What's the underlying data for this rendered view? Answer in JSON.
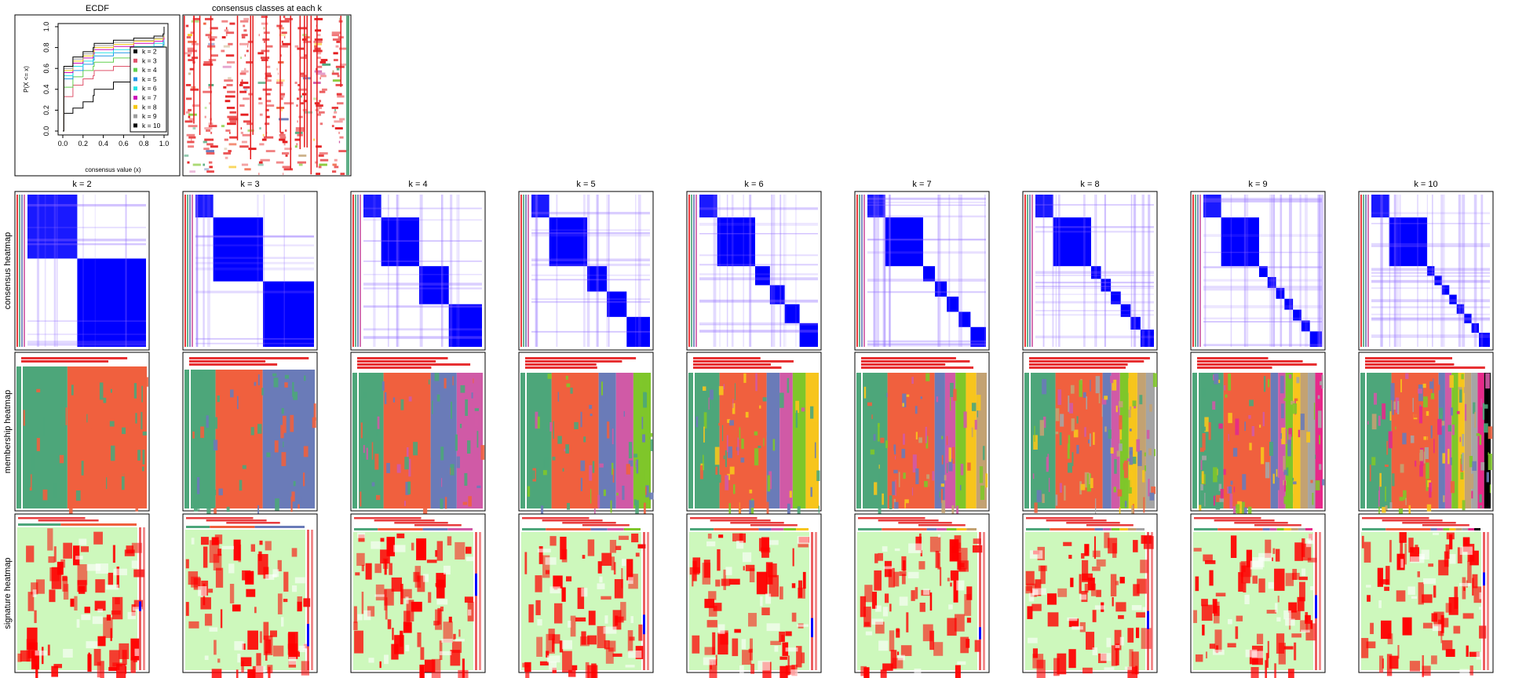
{
  "ecdf": {
    "title": "ECDF",
    "xlabel": "consensus value (x)",
    "ylabel": "P(X <= x)",
    "xlim": [
      0,
      1
    ],
    "ylim": [
      0,
      1
    ],
    "xticks": [
      "0.0",
      "0.2",
      "0.4",
      "0.6",
      "0.8",
      "1.0"
    ],
    "yticks": [
      "0.0",
      "0.2",
      "0.4",
      "0.6",
      "0.8",
      "1.0"
    ],
    "legend_placement": "bottom-right"
  },
  "classes_panel": {
    "title": "consensus classes at each k"
  },
  "row_labels": {
    "consensus": "consensus heatmap",
    "membership": "membership heatmap",
    "signature": "signature heatmap"
  },
  "colors": {
    "k_palette": [
      "#000000",
      "#DF536B",
      "#61D04F",
      "#2297E6",
      "#28E2E5",
      "#CD0BBC",
      "#F5C710",
      "#9E9E9E",
      "#000000"
    ],
    "class_palette": [
      "#E41A1C",
      "#F0603E",
      "#4DA67A",
      "#6A7BB8",
      "#D05AA6",
      "#7FC62A",
      "#F7C51C",
      "#C3A272",
      "#A5A5A5",
      "#E7298A"
    ],
    "consensus_blue": "#0000FF",
    "signature_red": "#FF0000",
    "signature_green": "#B8F5A0",
    "signature_blue": "#0000FF"
  },
  "chart_data": {
    "type": "line",
    "series": [
      {
        "name": "k = 2",
        "color": "#000000",
        "x": [
          0,
          0.01,
          0.1,
          0.2,
          0.3,
          0.31,
          0.5,
          0.7,
          0.9,
          0.99,
          1.0
        ],
        "y": [
          0,
          0.17,
          0.22,
          0.28,
          0.34,
          0.4,
          0.47,
          0.53,
          0.57,
          0.6,
          1.0
        ]
      },
      {
        "name": "k = 3",
        "color": "#DF536B",
        "x": [
          0,
          0.01,
          0.1,
          0.2,
          0.3,
          0.31,
          0.5,
          0.7,
          0.9,
          0.99,
          1.0
        ],
        "y": [
          0,
          0.33,
          0.44,
          0.5,
          0.53,
          0.58,
          0.62,
          0.66,
          0.7,
          0.72,
          1.0
        ]
      },
      {
        "name": "k = 4",
        "color": "#61D04F",
        "x": [
          0,
          0.01,
          0.1,
          0.2,
          0.3,
          0.31,
          0.5,
          0.7,
          0.9,
          0.99,
          1.0
        ],
        "y": [
          0,
          0.42,
          0.52,
          0.58,
          0.62,
          0.66,
          0.7,
          0.73,
          0.76,
          0.78,
          1.0
        ]
      },
      {
        "name": "k = 5",
        "color": "#2297E6",
        "x": [
          0,
          0.01,
          0.1,
          0.2,
          0.3,
          0.31,
          0.5,
          0.7,
          0.9,
          0.99,
          1.0
        ],
        "y": [
          0,
          0.5,
          0.58,
          0.64,
          0.68,
          0.72,
          0.75,
          0.78,
          0.81,
          0.83,
          1.0
        ]
      },
      {
        "name": "k = 6",
        "color": "#28E2E5",
        "x": [
          0,
          0.01,
          0.1,
          0.2,
          0.3,
          0.31,
          0.5,
          0.7,
          0.9,
          0.99,
          1.0
        ],
        "y": [
          0,
          0.53,
          0.62,
          0.67,
          0.71,
          0.75,
          0.78,
          0.81,
          0.84,
          0.86,
          1.0
        ]
      },
      {
        "name": "k = 7",
        "color": "#CD0BBC",
        "x": [
          0,
          0.01,
          0.1,
          0.2,
          0.3,
          0.31,
          0.5,
          0.7,
          0.9,
          0.99,
          1.0
        ],
        "y": [
          0,
          0.56,
          0.65,
          0.7,
          0.74,
          0.78,
          0.81,
          0.84,
          0.86,
          0.88,
          1.0
        ]
      },
      {
        "name": "k = 8",
        "color": "#F5C710",
        "x": [
          0,
          0.01,
          0.1,
          0.2,
          0.3,
          0.31,
          0.5,
          0.7,
          0.9,
          0.99,
          1.0
        ],
        "y": [
          0,
          0.58,
          0.67,
          0.72,
          0.76,
          0.8,
          0.83,
          0.86,
          0.88,
          0.9,
          1.0
        ]
      },
      {
        "name": "k = 9",
        "color": "#9E9E9E",
        "x": [
          0,
          0.01,
          0.1,
          0.2,
          0.3,
          0.31,
          0.5,
          0.7,
          0.9,
          0.99,
          1.0
        ],
        "y": [
          0,
          0.6,
          0.69,
          0.74,
          0.78,
          0.82,
          0.85,
          0.87,
          0.89,
          0.91,
          1.0
        ]
      },
      {
        "name": "k = 10",
        "color": "#000000",
        "x": [
          0,
          0.01,
          0.1,
          0.2,
          0.3,
          0.31,
          0.5,
          0.7,
          0.9,
          0.99,
          1.0
        ],
        "y": [
          0,
          0.62,
          0.71,
          0.76,
          0.8,
          0.84,
          0.87,
          0.89,
          0.91,
          0.93,
          1.0
        ]
      }
    ]
  },
  "k_panels": [
    {
      "label": "k = 2",
      "k": 2
    },
    {
      "label": "k = 3",
      "k": 3
    },
    {
      "label": "k = 4",
      "k": 4
    },
    {
      "label": "k = 5",
      "k": 5
    },
    {
      "label": "k = 6",
      "k": 6
    },
    {
      "label": "k = 7",
      "k": 7
    },
    {
      "label": "k = 8",
      "k": 8
    },
    {
      "label": "k = 9",
      "k": 9
    },
    {
      "label": "k = 10",
      "k": 10
    }
  ]
}
